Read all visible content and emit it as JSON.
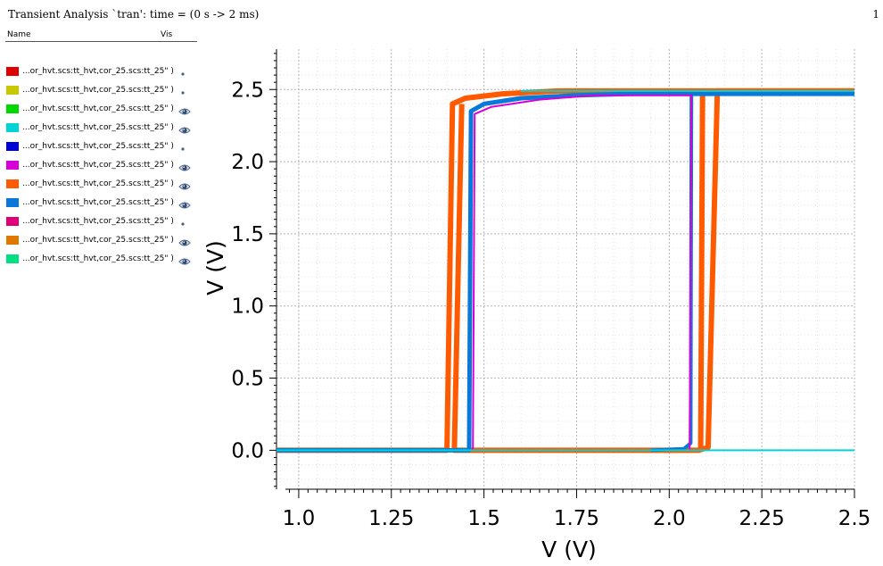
{
  "header": {
    "title": "Transient Analysis `tran': time = (0 s -> 2 ms)",
    "page": "1"
  },
  "legend": {
    "col_name": "Name",
    "col_vis": "Vis",
    "items": [
      {
        "label": "...or_hvt.scs:tt_hvt,cor_25.scs:tt_25\" )",
        "color": "#e00000",
        "visible": false
      },
      {
        "label": "...or_hvt.scs:tt_hvt,cor_25.scs:tt_25\" )",
        "color": "#c8c800",
        "visible": false
      },
      {
        "label": "...or_hvt.scs:tt_hvt,cor_25.scs:tt_25\" )",
        "color": "#00d800",
        "visible": true
      },
      {
        "label": "...or_hvt.scs:tt_hvt,cor_25.scs:tt_25\" )",
        "color": "#00d4d4",
        "visible": true
      },
      {
        "label": "...or_hvt.scs:tt_hvt,cor_25.scs:tt_25\" )",
        "color": "#0000d8",
        "visible": false
      },
      {
        "label": "...or_hvt.scs:tt_hvt,cor_25.scs:tt_25\" )",
        "color": "#d800d8",
        "visible": true
      },
      {
        "label": "...or_hvt.scs:tt_hvt,cor_25.scs:tt_25\" )",
        "color": "#ff5a00",
        "visible": true
      },
      {
        "label": "...or_hvt.scs:tt_hvt,cor_25.scs:tt_25\" )",
        "color": "#0a78d8",
        "visible": true
      },
      {
        "label": "...or_hvt.scs:tt_hvt,cor_25.scs:tt_25\" )",
        "color": "#e0007a",
        "visible": false
      },
      {
        "label": "...or_hvt.scs:tt_hvt,cor_25.scs:tt_25\" )",
        "color": "#e07800",
        "visible": true
      },
      {
        "label": "...or_hvt.scs:tt_hvt,cor_25.scs:tt_25\" )",
        "color": "#00e080",
        "visible": true
      }
    ]
  },
  "chart_data": {
    "type": "line",
    "xlabel": "V (V)",
    "ylabel": "V (V)",
    "xlim": [
      0.94,
      2.5
    ],
    "ylim": [
      -0.27,
      2.78
    ],
    "xticks": [
      "1.0",
      "1.25",
      "1.5",
      "1.75",
      "2.0",
      "2.25",
      "2.5"
    ],
    "xtick_values": [
      1.0,
      1.25,
      1.5,
      1.75,
      2.0,
      2.25,
      2.5
    ],
    "yticks": [
      "0.0",
      "0.5",
      "1.0",
      "1.5",
      "2.0",
      "2.5"
    ],
    "ytick_values": [
      0.0,
      0.5,
      1.0,
      1.5,
      2.0,
      2.5
    ],
    "grid": true,
    "series": [
      {
        "color": "#ff5a00",
        "width": 6,
        "points": [
          [
            0.94,
            0.0
          ],
          [
            1.4,
            0.0
          ],
          [
            1.415,
            2.4
          ],
          [
            1.45,
            2.44
          ],
          [
            1.55,
            2.47
          ],
          [
            1.7,
            2.49
          ],
          [
            1.8,
            2.49
          ],
          [
            2.5,
            2.49
          ]
        ]
      },
      {
        "color": "#ff5a00",
        "width": 6,
        "points": [
          [
            2.5,
            2.49
          ],
          [
            2.13,
            2.49
          ],
          [
            2.105,
            0.02
          ],
          [
            2.08,
            0.0
          ],
          [
            1.95,
            0.0
          ],
          [
            1.42,
            0.0
          ],
          [
            1.44,
            2.4
          ]
        ]
      },
      {
        "color": "#ff5a00",
        "width": 6,
        "points": [
          [
            2.09,
            2.49
          ],
          [
            2.085,
            0.0
          ]
        ]
      },
      {
        "color": "#0a78d8",
        "width": 5,
        "points": [
          [
            0.94,
            0.0
          ],
          [
            1.46,
            0.0
          ],
          [
            1.465,
            2.35
          ],
          [
            1.5,
            2.4
          ],
          [
            1.6,
            2.44
          ],
          [
            1.75,
            2.46
          ],
          [
            1.9,
            2.47
          ],
          [
            2.5,
            2.47
          ]
        ]
      },
      {
        "color": "#0a78d8",
        "width": 4,
        "points": [
          [
            2.06,
            2.47
          ],
          [
            2.058,
            0.05
          ],
          [
            2.04,
            0.01
          ],
          [
            1.95,
            0.0
          ]
        ]
      },
      {
        "color": "#d800d8",
        "width": 2,
        "points": [
          [
            1.47,
            0.0
          ],
          [
            1.475,
            2.33
          ],
          [
            1.52,
            2.38
          ],
          [
            1.65,
            2.43
          ],
          [
            1.8,
            2.46
          ],
          [
            2.06,
            2.46
          ],
          [
            2.055,
            0.0
          ]
        ]
      },
      {
        "color": "#00d4d4",
        "width": 2,
        "points": [
          [
            0.94,
            0.0
          ],
          [
            2.5,
            0.0
          ]
        ]
      },
      {
        "color": "#00d4d4",
        "width": 2,
        "points": [
          [
            1.6,
            2.49
          ],
          [
            2.5,
            2.49
          ]
        ]
      }
    ]
  }
}
